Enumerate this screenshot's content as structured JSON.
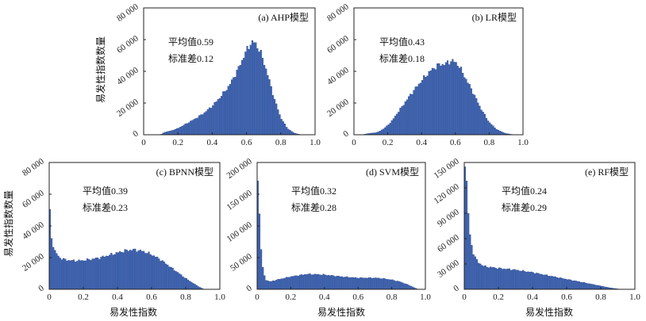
{
  "figure": {
    "y_axis_label": "易发性指数数量",
    "x_axis_label": "易发性指数",
    "mean_prefix": "平均值",
    "std_prefix": "标准差"
  },
  "chart_data": [
    {
      "id": "ahp",
      "type": "bar",
      "title": "(a) AHP模型",
      "xlim": [
        0,
        1.0
      ],
      "ylim": [
        0,
        80000
      ],
      "xticks": [
        "0",
        "0.2",
        "0.4",
        "0.6",
        "0.8",
        "1.0"
      ],
      "yticks": [
        "0",
        "20 000",
        "40 000",
        "60 000",
        "80 000"
      ],
      "mean": "0.59",
      "std": "0.12",
      "curve": [
        [
          0.1,
          0
        ],
        [
          0.12,
          1500
        ],
        [
          0.16,
          2500
        ],
        [
          0.2,
          4000
        ],
        [
          0.25,
          7000
        ],
        [
          0.3,
          10000
        ],
        [
          0.35,
          13500
        ],
        [
          0.4,
          18000
        ],
        [
          0.45,
          24000
        ],
        [
          0.5,
          31000
        ],
        [
          0.55,
          41000
        ],
        [
          0.6,
          53000
        ],
        [
          0.63,
          58500
        ],
        [
          0.65,
          58000
        ],
        [
          0.68,
          53000
        ],
        [
          0.72,
          40000
        ],
        [
          0.76,
          24000
        ],
        [
          0.8,
          11000
        ],
        [
          0.84,
          4000
        ],
        [
          0.88,
          1000
        ],
        [
          0.92,
          0
        ]
      ]
    },
    {
      "id": "lr",
      "type": "bar",
      "title": "(b) LR模型",
      "xlim": [
        0,
        1.0
      ],
      "ylim": [
        0,
        80000
      ],
      "xticks": [
        "0",
        "0.2",
        "0.4",
        "0.6",
        "0.8",
        "1.0"
      ],
      "yticks": [
        "0",
        "20 000",
        "40 000",
        "60 000",
        "80 000"
      ],
      "mean": "0.43",
      "std": "0.18",
      "curve": [
        [
          0.05,
          0
        ],
        [
          0.08,
          700
        ],
        [
          0.14,
          1500
        ],
        [
          0.18,
          4000
        ],
        [
          0.22,
          8000
        ],
        [
          0.28,
          17000
        ],
        [
          0.34,
          26000
        ],
        [
          0.4,
          34000
        ],
        [
          0.45,
          40000
        ],
        [
          0.5,
          44000
        ],
        [
          0.55,
          45000
        ],
        [
          0.58,
          47000
        ],
        [
          0.62,
          44000
        ],
        [
          0.66,
          36000
        ],
        [
          0.7,
          28000
        ],
        [
          0.75,
          17000
        ],
        [
          0.8,
          8000
        ],
        [
          0.85,
          3000
        ],
        [
          0.9,
          800
        ],
        [
          0.95,
          0
        ]
      ]
    },
    {
      "id": "bpnn",
      "type": "bar",
      "title": "(c) BPNN模型",
      "xlim": [
        0,
        1.0
      ],
      "ylim": [
        0,
        80000
      ],
      "xticks": [
        "0",
        "0.2",
        "0.4",
        "0.6",
        "0.8",
        "1.0"
      ],
      "yticks": [
        "0",
        "20 000",
        "40 000",
        "60 000",
        "80 000"
      ],
      "mean": "0.39",
      "std": "0.23",
      "curve": [
        [
          0.0,
          62000
        ],
        [
          0.01,
          35000
        ],
        [
          0.03,
          25000
        ],
        [
          0.06,
          20000
        ],
        [
          0.1,
          18500
        ],
        [
          0.15,
          18000
        ],
        [
          0.2,
          18200
        ],
        [
          0.25,
          19000
        ],
        [
          0.3,
          20000
        ],
        [
          0.35,
          21500
        ],
        [
          0.4,
          23000
        ],
        [
          0.45,
          24500
        ],
        [
          0.5,
          25000
        ],
        [
          0.55,
          24000
        ],
        [
          0.6,
          22000
        ],
        [
          0.65,
          19000
        ],
        [
          0.7,
          15000
        ],
        [
          0.75,
          11000
        ],
        [
          0.8,
          7000
        ],
        [
          0.85,
          3500
        ],
        [
          0.88,
          1500
        ],
        [
          0.91,
          0
        ]
      ]
    },
    {
      "id": "svm",
      "type": "bar",
      "title": "(d) SVM模型",
      "xlim": [
        0,
        1.0
      ],
      "ylim": [
        0,
        200000
      ],
      "xticks": [
        "0",
        "0.2",
        "0.4",
        "0.6",
        "0.8",
        "1.0"
      ],
      "yticks": [
        "0",
        "50 000",
        "100 000",
        "150 000",
        "200 000"
      ],
      "mean": "0.32",
      "std": "0.28",
      "curve": [
        [
          0.0,
          190000
        ],
        [
          0.01,
          150000
        ],
        [
          0.02,
          90000
        ],
        [
          0.03,
          40000
        ],
        [
          0.05,
          15000
        ],
        [
          0.08,
          12000
        ],
        [
          0.12,
          15000
        ],
        [
          0.2,
          20000
        ],
        [
          0.3,
          24000
        ],
        [
          0.4,
          23000
        ],
        [
          0.5,
          20000
        ],
        [
          0.6,
          18000
        ],
        [
          0.7,
          18000
        ],
        [
          0.75,
          17000
        ],
        [
          0.8,
          15000
        ],
        [
          0.85,
          12000
        ],
        [
          0.9,
          7000
        ],
        [
          0.94,
          2000
        ],
        [
          0.96,
          0
        ]
      ]
    },
    {
      "id": "rf",
      "type": "bar",
      "title": "(e) RF模型",
      "xlim": [
        0,
        1.0
      ],
      "ylim": [
        0,
        150000
      ],
      "xticks": [
        "0",
        "0.2",
        "0.4",
        "0.6",
        "0.8",
        "1.0"
      ],
      "yticks": [
        "0",
        "30 000",
        "60 000",
        "90 000",
        "120 000",
        "150 000"
      ],
      "mean": "0.24",
      "std": "0.29",
      "curve": [
        [
          0.0,
          155000
        ],
        [
          0.01,
          145000
        ],
        [
          0.02,
          110000
        ],
        [
          0.03,
          70000
        ],
        [
          0.05,
          45000
        ],
        [
          0.08,
          32000
        ],
        [
          0.12,
          27000
        ],
        [
          0.2,
          25000
        ],
        [
          0.3,
          23000
        ],
        [
          0.4,
          20000
        ],
        [
          0.5,
          16000
        ],
        [
          0.6,
          12000
        ],
        [
          0.7,
          8000
        ],
        [
          0.8,
          4000
        ],
        [
          0.85,
          2000
        ],
        [
          0.9,
          500
        ],
        [
          0.93,
          0
        ]
      ]
    }
  ]
}
